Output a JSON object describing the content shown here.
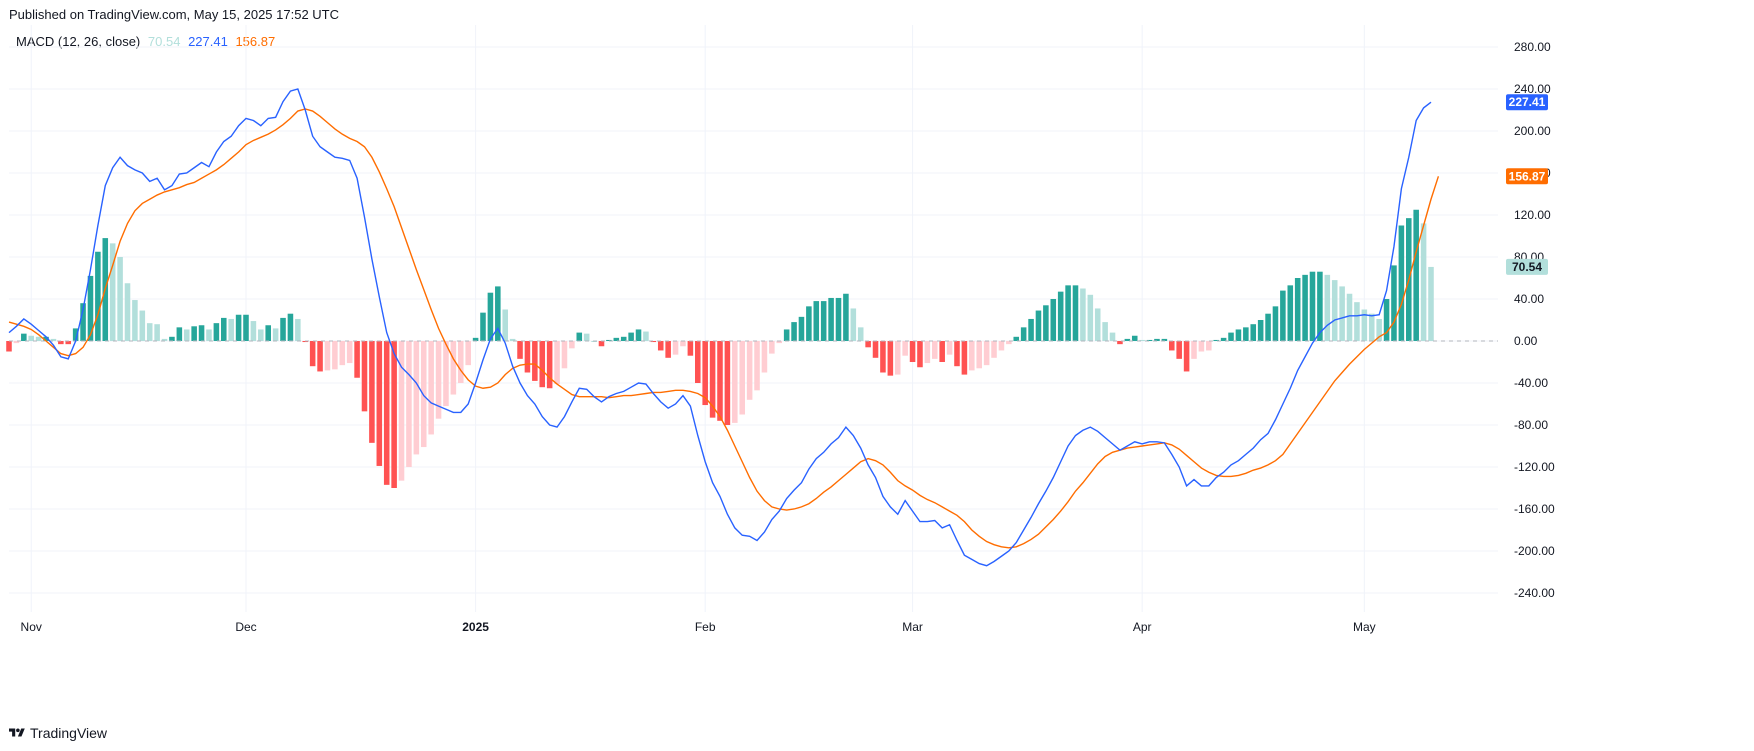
{
  "header": {
    "published": "Published on TradingView.com, May 15, 2025 17:52 UTC"
  },
  "indicator": {
    "name": "MACD (12, 26, close)",
    "histogram_value": "70.54",
    "macd_value": "227.41",
    "signal_value": "156.87"
  },
  "footer": {
    "brand": "TradingView"
  },
  "colors": {
    "macd": "#2962ff",
    "signal": "#ff6d00",
    "hist_pos_strong": "#26a69a",
    "hist_pos_weak": "#b2dfdb",
    "hist_neg_strong": "#ff5252",
    "hist_neg_weak": "#ffcdd2",
    "grid": "#f0f3fa"
  },
  "chart_data": {
    "type": "line",
    "title": "MACD (12, 26, close)",
    "ylim": [
      -260,
      300
    ],
    "y_ticks": [
      "280.00",
      "240.00",
      "200.00",
      "160.00",
      "120.00",
      "80.00",
      "40.00",
      "0.00",
      "-40.00",
      "-80.00",
      "-120.00",
      "-160.00",
      "-200.00",
      "-240.00"
    ],
    "x_ticks": [
      {
        "label": "Nov",
        "bar": 3,
        "bold": false
      },
      {
        "label": "Dec",
        "bar": 32,
        "bold": false
      },
      {
        "label": "2025",
        "bar": 63,
        "bold": true
      },
      {
        "label": "Feb",
        "bar": 94,
        "bold": false
      },
      {
        "label": "Mar",
        "bar": 122,
        "bold": false
      },
      {
        "label": "Apr",
        "bar": 153,
        "bold": false
      },
      {
        "label": "May",
        "bar": 183,
        "bold": false
      }
    ],
    "grid": true,
    "last_values": {
      "macd": 227.41,
      "signal": 156.87,
      "histogram": 70.54
    },
    "series": [
      {
        "name": "MACD",
        "values": [
          8,
          14,
          21,
          16,
          10,
          4,
          -4,
          -15,
          -17,
          0,
          30,
          68,
          110,
          148,
          165,
          175,
          167,
          163,
          160,
          152,
          155,
          144,
          148,
          159,
          160,
          165,
          170,
          166,
          180,
          190,
          195,
          205,
          212,
          210,
          205,
          212,
          213,
          228,
          238,
          240,
          220,
          195,
          185,
          180,
          175,
          174,
          172,
          155,
          118,
          78,
          42,
          8,
          -12,
          -25,
          -32,
          -40,
          -52,
          -59,
          -62,
          -65,
          -68,
          -68,
          -60,
          -40,
          -18,
          2,
          12,
          -2,
          -24,
          -40,
          -52,
          -60,
          -72,
          -80,
          -82,
          -72,
          -58,
          -45,
          -46,
          -53,
          -58,
          -53,
          -50,
          -48,
          -44,
          -40,
          -41,
          -50,
          -58,
          -64,
          -60,
          -52,
          -62,
          -90,
          -115,
          -135,
          -148,
          -165,
          -178,
          -185,
          -186,
          -190,
          -182,
          -170,
          -162,
          -150,
          -142,
          -135,
          -122,
          -112,
          -106,
          -98,
          -92,
          -82,
          -90,
          -102,
          -118,
          -130,
          -148,
          -158,
          -165,
          -152,
          -162,
          -172,
          -172,
          -171,
          -178,
          -175,
          -190,
          -204,
          -208,
          -212,
          -214,
          -210,
          -205,
          -200,
          -192,
          -180,
          -168,
          -155,
          -143,
          -130,
          -115,
          -100,
          -90,
          -85,
          -82,
          -86,
          -92,
          -98,
          -104,
          -100,
          -96,
          -98,
          -96,
          -96,
          -97,
          -108,
          -120,
          -138,
          -132,
          -138,
          -138,
          -130,
          -125,
          -118,
          -114,
          -108,
          -102,
          -94,
          -88,
          -75,
          -60,
          -45,
          -28,
          -15,
          -2,
          8,
          15,
          20,
          22,
          24,
          24,
          25,
          24,
          25,
          48,
          90,
          145,
          175,
          210,
          222,
          227.41
        ]
      },
      {
        "name": "Signal",
        "values": [
          18,
          16,
          14,
          11,
          6,
          0,
          -6,
          -12,
          -14,
          -12,
          -6,
          6,
          25,
          50,
          72,
          95,
          112,
          124,
          131,
          135,
          139,
          142,
          144,
          146,
          149,
          151,
          155,
          159,
          163,
          168,
          174,
          180,
          187,
          191,
          194,
          197,
          201,
          206,
          212,
          219,
          221,
          219,
          214,
          208,
          202,
          197,
          193,
          190,
          185,
          175,
          161,
          145,
          128,
          108,
          88,
          68,
          49,
          30,
          12,
          -3,
          -17,
          -28,
          -37,
          -43,
          -45,
          -44,
          -40,
          -32,
          -26,
          -23,
          -22,
          -22,
          -28,
          -35,
          -41,
          -46,
          -51,
          -53,
          -53,
          -53,
          -53,
          -54,
          -53,
          -52,
          -52,
          -51,
          -50,
          -49,
          -49,
          -48,
          -47,
          -47,
          -48,
          -50,
          -54,
          -62,
          -72,
          -85,
          -100,
          -115,
          -130,
          -143,
          -152,
          -158,
          -160,
          -161,
          -160,
          -158,
          -155,
          -150,
          -144,
          -139,
          -133,
          -127,
          -121,
          -115,
          -112,
          -114,
          -118,
          -125,
          -133,
          -138,
          -142,
          -147,
          -151,
          -154,
          -158,
          -162,
          -166,
          -172,
          -180,
          -186,
          -191,
          -194,
          -196,
          -197,
          -196,
          -193,
          -189,
          -184,
          -177,
          -170,
          -162,
          -153,
          -143,
          -135,
          -126,
          -117,
          -110,
          -106,
          -104,
          -102,
          -101,
          -100,
          -99,
          -98,
          -97,
          -99,
          -103,
          -109,
          -115,
          -121,
          -125,
          -128,
          -129,
          -129,
          -128,
          -126,
          -123,
          -121,
          -118,
          -114,
          -108,
          -98,
          -88,
          -78,
          -68,
          -58,
          -48,
          -38,
          -30,
          -22,
          -15,
          -8,
          -2,
          4,
          8,
          18,
          35,
          58,
          85,
          110,
          135,
          156.87
        ]
      },
      {
        "name": "Histogram",
        "values": [
          -10,
          -2,
          7,
          5,
          4,
          4,
          2,
          -3,
          -3,
          12,
          36,
          62,
          85,
          98,
          93,
          80,
          55,
          39,
          29,
          17,
          16,
          2,
          4,
          13,
          11,
          14,
          15,
          11,
          17,
          22,
          21,
          25,
          25,
          19,
          11,
          15,
          12,
          22,
          26,
          21,
          -1,
          -24,
          -29,
          -28,
          -27,
          -23,
          -21,
          -35,
          -67,
          -97,
          -119,
          -137,
          -140,
          -133,
          -120,
          -108,
          -101,
          -89,
          -74,
          -62,
          -51,
          -40,
          -23,
          3,
          27,
          46,
          52,
          30,
          2,
          -17,
          -30,
          -38,
          -44,
          -45,
          -41,
          -26,
          -7,
          8,
          7,
          0,
          -5,
          1,
          3,
          4,
          8,
          11,
          9,
          -1,
          -9,
          -16,
          -13,
          -5,
          -14,
          -40,
          -61,
          -73,
          -76,
          -80,
          -78,
          -70,
          -56,
          -47,
          -30,
          -12,
          -2,
          11,
          18,
          23,
          33,
          38,
          38,
          41,
          41,
          45,
          31,
          13,
          -6,
          -16,
          -30,
          -33,
          -32,
          -14,
          -20,
          -25,
          -21,
          -17,
          -20,
          -13,
          -24,
          -32,
          -28,
          -26,
          -23,
          -16,
          -9,
          -3,
          4,
          13,
          21,
          29,
          34,
          40,
          47,
          53,
          53,
          50,
          44,
          31,
          18,
          8,
          -3,
          2,
          5,
          1,
          1,
          2,
          2,
          -9,
          -17,
          -29,
          -17,
          -10,
          -9,
          1,
          3,
          8,
          11,
          13,
          16,
          20,
          26,
          33,
          48,
          53,
          60,
          63,
          66,
          66,
          63,
          58,
          52,
          45,
          37,
          30,
          26,
          21,
          40,
          72,
          110,
          117,
          125,
          112,
          70.54
        ]
      }
    ]
  }
}
